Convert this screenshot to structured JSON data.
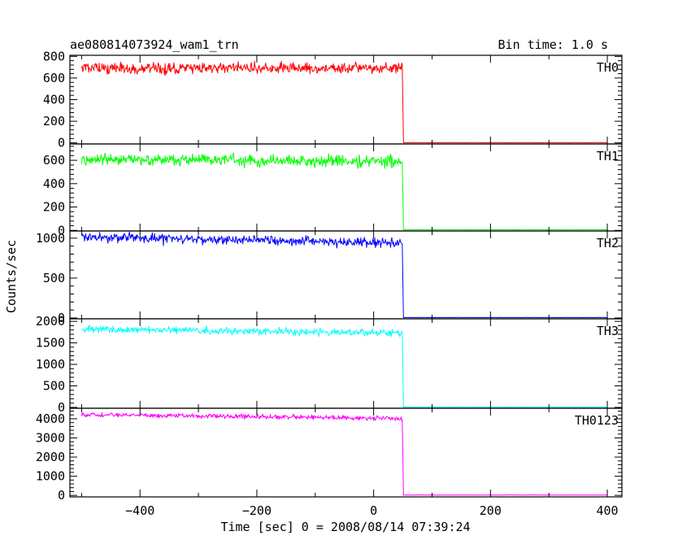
{
  "chart_data": {
    "type": "line",
    "title": "ae080814073924_wam1_trn",
    "bin_time_label": "Bin time: 1.0 s",
    "xlabel": "Time [sec] 0 = 2008/08/14 07:39:24",
    "ylabel": "Counts/sec",
    "xlim": [
      -520,
      425
    ],
    "x_ticks": [
      -400,
      -200,
      0,
      200,
      400
    ],
    "x_tick_labels": [
      "−400",
      "−200",
      "0",
      "200",
      "400"
    ],
    "step_time": 50,
    "x_start": -500,
    "x_end": 400,
    "grid": false,
    "legend": "none",
    "panels": [
      {
        "name": "TH0",
        "color": "#ff0000",
        "ylim": [
          -10,
          810
        ],
        "y_ticks": [
          0,
          200,
          400,
          600,
          800
        ],
        "y_tick_labels": [
          "0",
          "200",
          "400",
          "600",
          "800"
        ],
        "level_start": 690,
        "level_end": 690,
        "noise": 25,
        "level_after": 2
      },
      {
        "name": "TH1",
        "color": "#00ff00",
        "ylim": [
          -5,
          740
        ],
        "y_ticks": [
          0,
          200,
          400,
          600
        ],
        "y_tick_labels": [
          "0",
          "200",
          "400",
          "600"
        ],
        "level_start": 610,
        "level_end": 590,
        "noise": 25,
        "level_after": 5
      },
      {
        "name": "TH2",
        "color": "#0000ff",
        "ylim": [
          -10,
          1090
        ],
        "y_ticks": [
          0,
          500,
          1000
        ],
        "y_tick_labels": [
          "0",
          "500",
          "1000"
        ],
        "level_start": 1010,
        "level_end": 940,
        "noise": 30,
        "level_after": 5
      },
      {
        "name": "TH3",
        "color": "#00ffff",
        "ylim": [
          -20,
          2060
        ],
        "y_ticks": [
          0,
          500,
          1000,
          1500,
          2000
        ],
        "y_tick_labels": [
          "0",
          "500",
          "1000",
          "1500",
          "2000"
        ],
        "level_start": 1820,
        "level_end": 1730,
        "noise": 40,
        "level_after": 5
      },
      {
        "name": "TH0123",
        "color": "#ff00ff",
        "ylim": [
          -80,
          4550
        ],
        "y_ticks": [
          0,
          1000,
          2000,
          3000,
          4000
        ],
        "y_tick_labels": [
          "0",
          "1000",
          "2000",
          "3000",
          "4000"
        ],
        "level_start": 4220,
        "level_end": 4020,
        "noise": 60,
        "level_after": 15
      }
    ]
  }
}
